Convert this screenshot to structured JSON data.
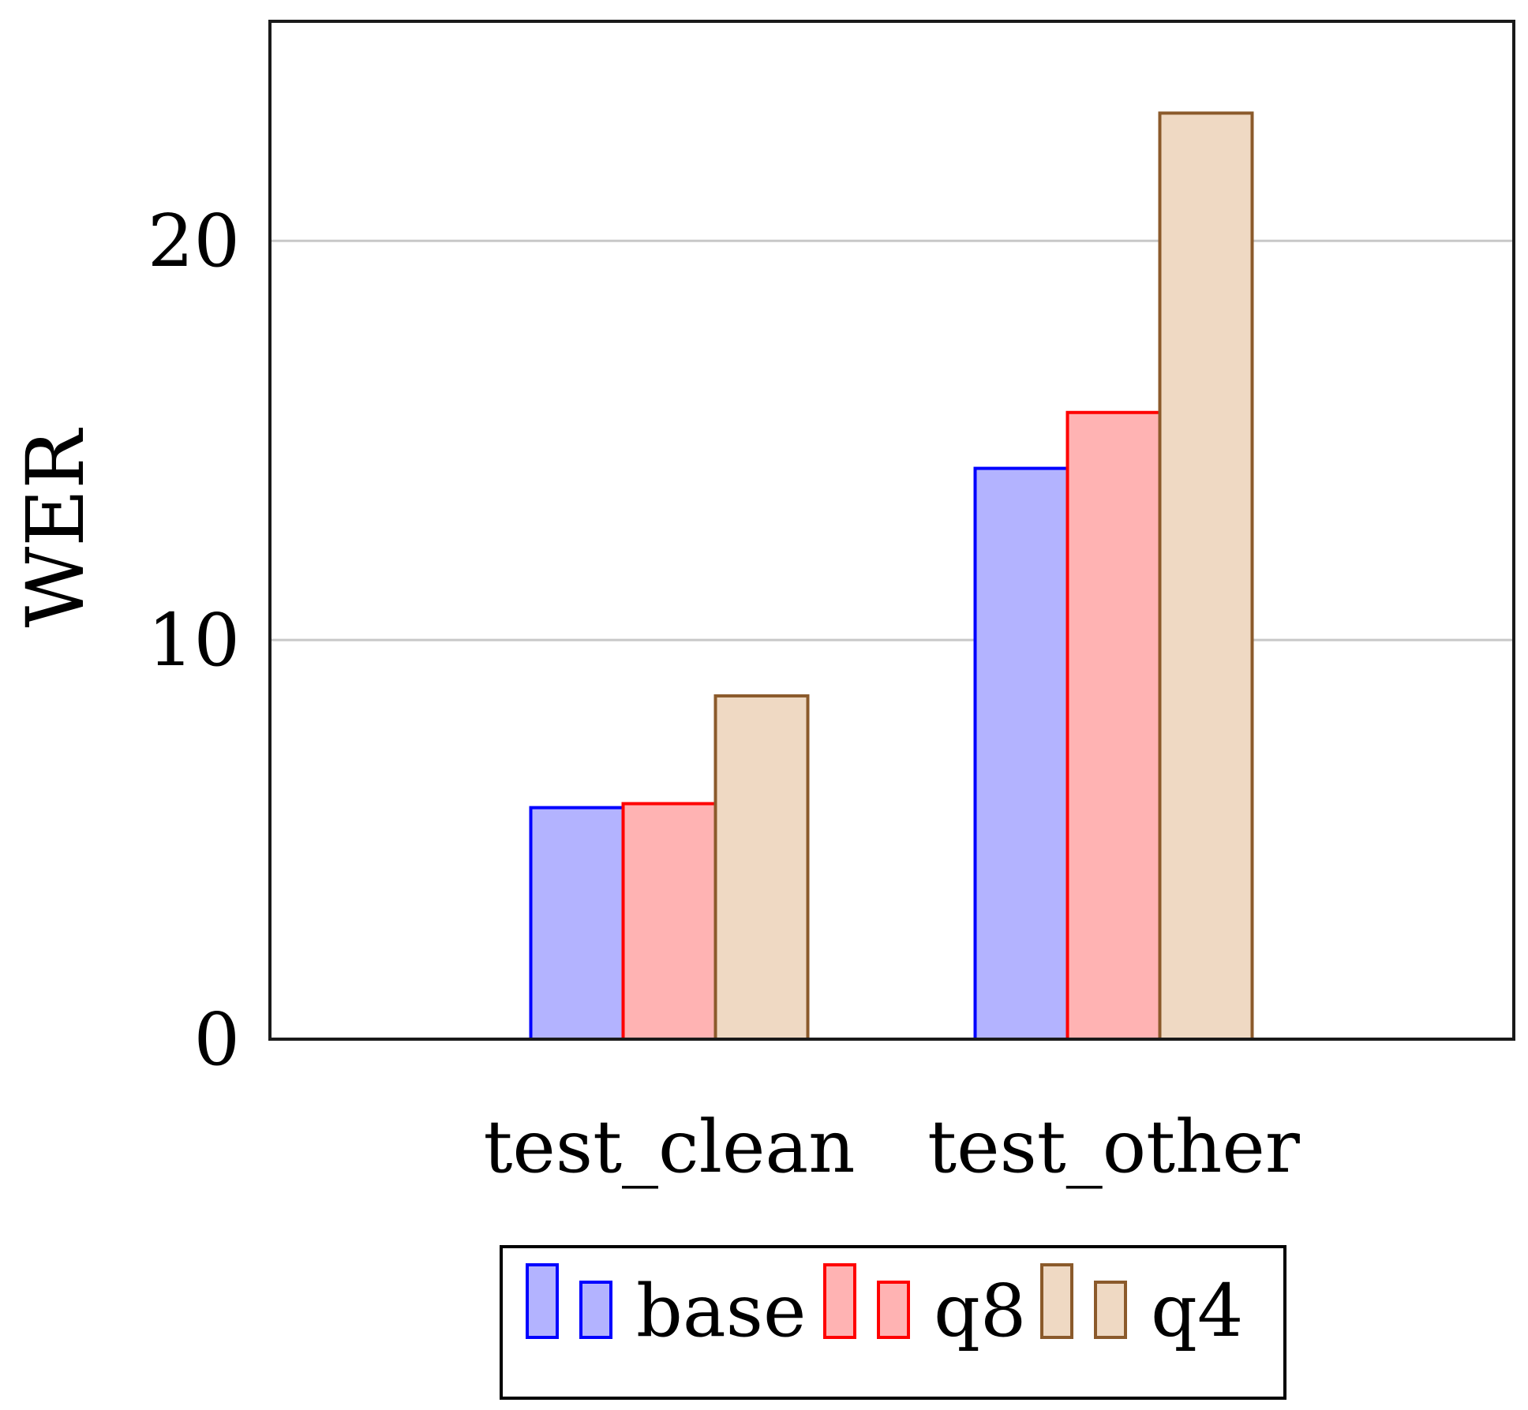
{
  "chart_data": {
    "type": "bar",
    "categories": [
      "test_clean",
      "test_other"
    ],
    "series": [
      {
        "name": "base",
        "values": [
          5.8,
          14.3
        ],
        "stroke": "#0000ff",
        "fill": "#b3b3ff"
      },
      {
        "name": "q8",
        "values": [
          5.9,
          15.7
        ],
        "stroke": "#ff0000",
        "fill": "#ffb3b3"
      },
      {
        "name": "q4",
        "values": [
          8.6,
          23.2
        ],
        "stroke": "#8b5a2b",
        "fill": "#efd9c3"
      }
    ],
    "title": "",
    "xlabel": "",
    "ylabel": "WER",
    "yticks": [
      0,
      10,
      20
    ],
    "ylim": [
      0,
      25.5
    ],
    "grid": "horizontal",
    "legend_position": "bottom-center"
  }
}
